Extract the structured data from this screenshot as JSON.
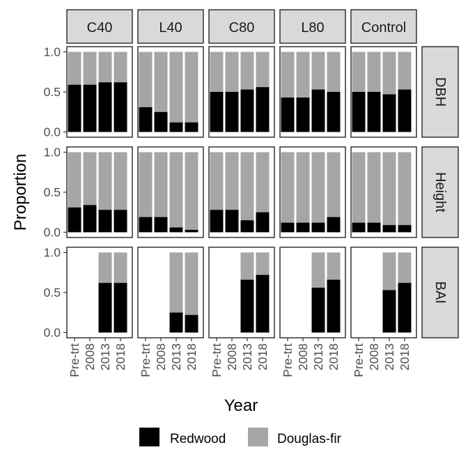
{
  "chart_data": {
    "type": "bar",
    "stacked": true,
    "xlabel": "Year",
    "ylabel": "Proportion",
    "ylim": [
      0,
      1
    ],
    "yticks": [
      "0.0",
      "0.5",
      "1.0"
    ],
    "categories": [
      "Pre-trt",
      "2008",
      "2013",
      "2018"
    ],
    "columns": [
      "C40",
      "L40",
      "C80",
      "L80",
      "Control"
    ],
    "rows": [
      "DBH",
      "Height",
      "BAI"
    ],
    "legend": {
      "position": "bottom",
      "entries": [
        {
          "label": "Redwood",
          "color": "#000000"
        },
        {
          "label": "Douglas-fir",
          "color": "#a6a6a6"
        }
      ]
    },
    "grid": false,
    "series_note": "values are Redwood proportion per year; Douglas-fir fills the remainder to 1.0; null = no bar",
    "panels": {
      "DBH": {
        "C40": [
          0.59,
          0.59,
          0.62,
          0.62
        ],
        "L40": [
          0.31,
          0.25,
          0.12,
          0.12
        ],
        "C80": [
          0.5,
          0.5,
          0.53,
          0.56
        ],
        "L80": [
          0.43,
          0.43,
          0.53,
          0.5
        ],
        "Control": [
          0.5,
          0.5,
          0.47,
          0.53
        ]
      },
      "Height": {
        "C40": [
          0.31,
          0.34,
          0.28,
          0.28
        ],
        "L40": [
          0.19,
          0.19,
          0.06,
          0.03
        ],
        "C80": [
          0.28,
          0.28,
          0.15,
          0.25
        ],
        "L80": [
          0.12,
          0.12,
          0.12,
          0.19
        ],
        "Control": [
          0.12,
          0.12,
          0.09,
          0.09
        ]
      },
      "BAI": {
        "C40": [
          null,
          null,
          0.62,
          0.62
        ],
        "L40": [
          null,
          null,
          0.25,
          0.22
        ],
        "C80": [
          null,
          null,
          0.66,
          0.72
        ],
        "L80": [
          null,
          null,
          0.56,
          0.66
        ],
        "Control": [
          null,
          null,
          0.53,
          0.62
        ]
      }
    }
  }
}
